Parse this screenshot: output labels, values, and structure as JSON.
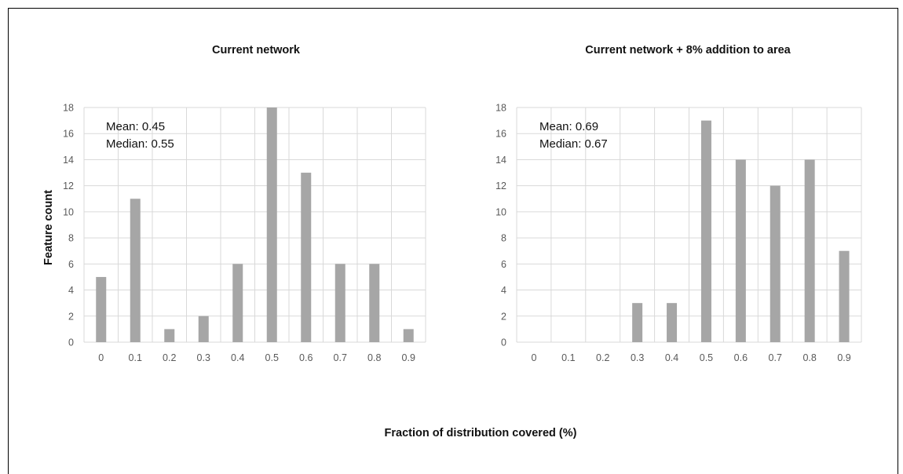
{
  "colors": {
    "bar": "#a6a6a6",
    "grid": "#d9d9d9",
    "text": "#111111",
    "tick": "#595959"
  },
  "xlabel": "Fraction of distribution covered (%)",
  "ylabel": "Feature count",
  "chart_data": [
    {
      "type": "bar",
      "title": "Current network",
      "categories": [
        "0",
        "0.1",
        "0.2",
        "0.3",
        "0.4",
        "0.5",
        "0.6",
        "0.7",
        "0.8",
        "0.9"
      ],
      "values": [
        5,
        11,
        1,
        2,
        6,
        18,
        13,
        6,
        6,
        1
      ],
      "ylim": [
        0,
        18
      ],
      "yticks": [
        0,
        2,
        4,
        6,
        8,
        10,
        12,
        14,
        16,
        18
      ],
      "grid": true,
      "annotations": [
        "Mean: 0.45",
        "Median: 0.55"
      ]
    },
    {
      "type": "bar",
      "title": "Current network + 8% addition to area",
      "categories": [
        "0",
        "0.1",
        "0.2",
        "0.3",
        "0.4",
        "0.5",
        "0.6",
        "0.7",
        "0.8",
        "0.9"
      ],
      "values": [
        0,
        0,
        0,
        3,
        3,
        17,
        14,
        12,
        14,
        7
      ],
      "ylim": [
        0,
        18
      ],
      "yticks": [
        0,
        2,
        4,
        6,
        8,
        10,
        12,
        14,
        16,
        18
      ],
      "grid": true,
      "annotations": [
        "Mean: 0.69",
        "Median: 0.67"
      ]
    }
  ]
}
